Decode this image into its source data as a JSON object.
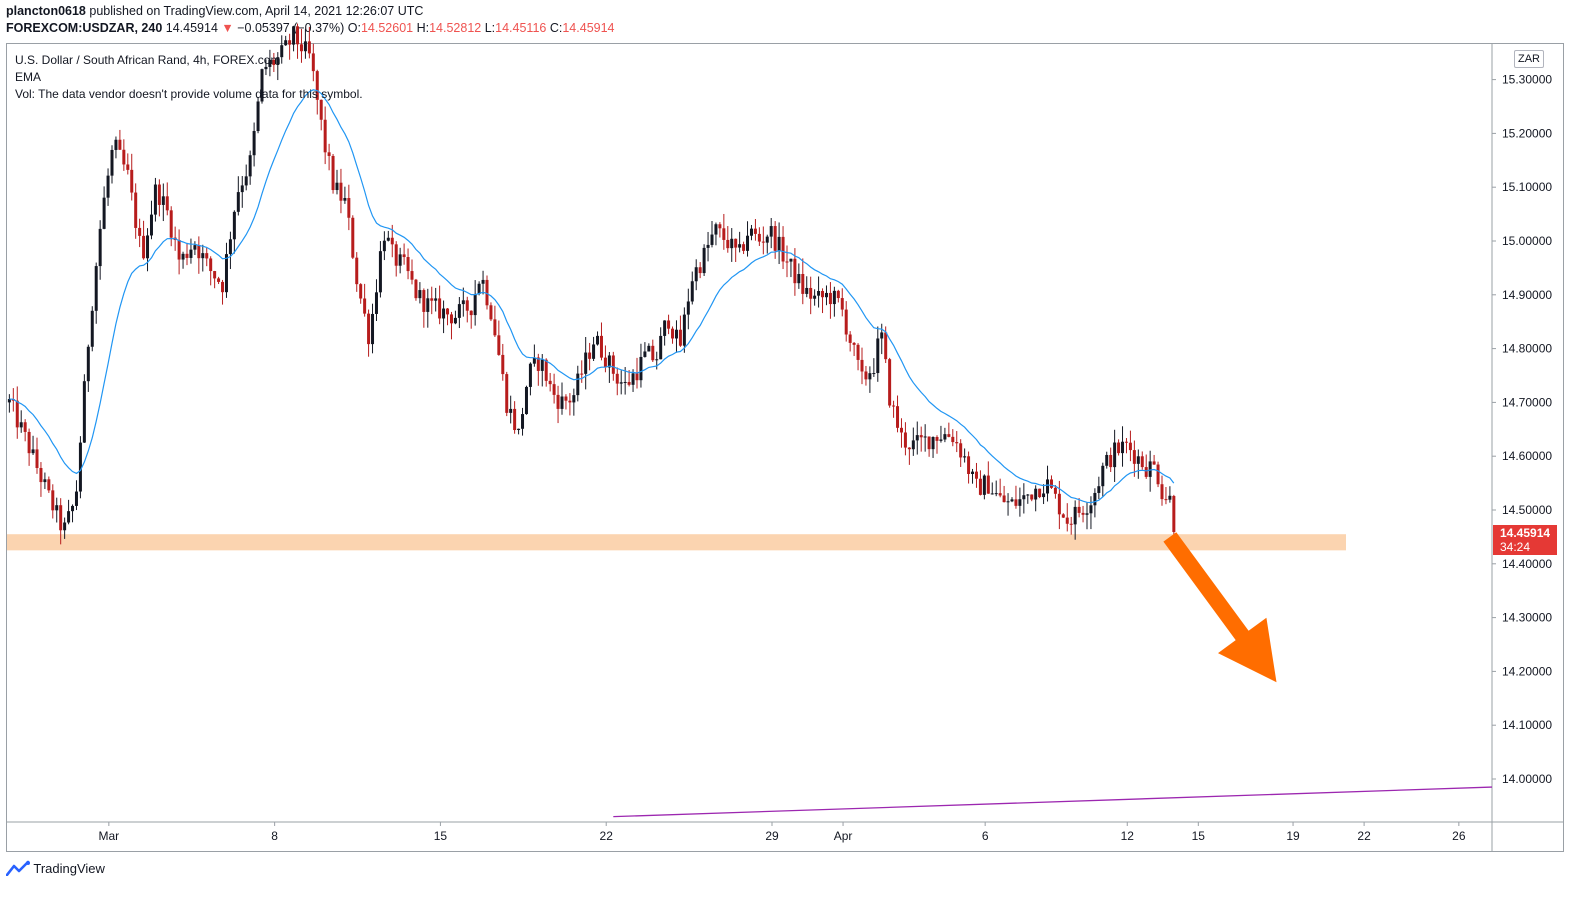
{
  "header": {
    "author": "plancton0618",
    "published_text": "published on TradingView.com, April 14, 2021 12:26:07 UTC",
    "symbol": "FOREXCOM:USDZAR, 240",
    "last": "14.45914",
    "change_arrow": "▼",
    "change": "−0.05397 (−0.37%)",
    "o_label": "O:",
    "o_value": "14.52601",
    "h_label": "H:",
    "h_value": "14.52812",
    "l_label": "L:",
    "l_value": "14.45116",
    "c_label": "C:",
    "c_value": "14.45914"
  },
  "legend": {
    "title": "U.S. Dollar / South African Rand, 4h, FOREX.com",
    "ema": "EMA",
    "vol": "Vol: The data vendor doesn't provide volume data for this symbol."
  },
  "currency_button": "ZAR",
  "price_tag": {
    "price": "14.45914",
    "countdown": "34:24"
  },
  "footer": {
    "brand": "TradingView"
  },
  "colors": {
    "up": "#131722",
    "down": "#b71c1c",
    "ema": "#2196f3",
    "zone": "#fbd4b0",
    "arrow": "#ff6d00",
    "trendline": "#9c27b0",
    "price_tag": "#e53935"
  },
  "chart_data": {
    "type": "candlestick",
    "title": "U.S. Dollar / South African Rand, 4h, FOREX.com",
    "ylim": [
      13.93,
      15.38
    ],
    "y_ticks": [
      "15.30000",
      "15.20000",
      "15.10000",
      "15.00000",
      "14.90000",
      "14.80000",
      "14.70000",
      "14.60000",
      "14.50000",
      "14.40000",
      "14.30000",
      "14.20000",
      "14.10000",
      "14.00000"
    ],
    "y_tick_values": [
      15.3,
      15.2,
      15.1,
      15.0,
      14.9,
      14.8,
      14.7,
      14.6,
      14.5,
      14.4,
      14.3,
      14.2,
      14.1,
      14.0
    ],
    "x_ticks": [
      "Mar",
      "8",
      "15",
      "22",
      "29",
      "Apr",
      "6",
      "12",
      "15",
      "19",
      "22",
      "26"
    ],
    "x_tick_days": [
      1,
      8,
      15,
      22,
      29,
      32,
      38,
      44,
      47,
      51,
      54,
      58
    ],
    "x_day_range": [
      -3.3,
      59.4
    ],
    "candle_day_range": [
      -3.2,
      46.0
    ],
    "support_zone": [
      14.425,
      14.455
    ],
    "ema_label": "EMA",
    "current_price": 14.45914,
    "ohlc_keypoints": [
      [
        -3.2,
        14.7
      ],
      [
        -2.4,
        14.62
      ],
      [
        -1.5,
        14.52
      ],
      [
        -0.9,
        14.46
      ],
      [
        -0.4,
        14.52
      ],
      [
        0.2,
        14.85
      ],
      [
        0.7,
        15.05
      ],
      [
        1.2,
        15.18
      ],
      [
        1.8,
        15.12
      ],
      [
        2.4,
        14.97
      ],
      [
        3.0,
        15.1
      ],
      [
        3.5,
        15.05
      ],
      [
        4.0,
        14.96
      ],
      [
        4.6,
        15.0
      ],
      [
        5.2,
        14.95
      ],
      [
        5.8,
        14.92
      ],
      [
        6.4,
        15.09
      ],
      [
        7.0,
        15.15
      ],
      [
        7.5,
        15.32
      ],
      [
        8.2,
        15.34
      ],
      [
        8.8,
        15.38
      ],
      [
        9.5,
        15.34
      ],
      [
        10.1,
        15.18
      ],
      [
        10.5,
        15.1
      ],
      [
        11.0,
        15.07
      ],
      [
        11.5,
        14.92
      ],
      [
        12.0,
        14.82
      ],
      [
        12.6,
        15.02
      ],
      [
        13.0,
        14.97
      ],
      [
        13.5,
        14.95
      ],
      [
        14.0,
        14.9
      ],
      [
        14.5,
        14.88
      ],
      [
        15.0,
        14.87
      ],
      [
        15.6,
        14.86
      ],
      [
        16.3,
        14.88
      ],
      [
        16.7,
        14.94
      ],
      [
        17.2,
        14.86
      ],
      [
        17.8,
        14.7
      ],
      [
        18.3,
        14.64
      ],
      [
        18.7,
        14.75
      ],
      [
        19.2,
        14.78
      ],
      [
        19.7,
        14.72
      ],
      [
        20.1,
        14.7
      ],
      [
        20.6,
        14.71
      ],
      [
        21.0,
        14.76
      ],
      [
        21.5,
        14.82
      ],
      [
        21.9,
        14.79
      ],
      [
        22.4,
        14.75
      ],
      [
        22.8,
        14.73
      ],
      [
        23.3,
        14.76
      ],
      [
        23.7,
        14.79
      ],
      [
        24.1,
        14.78
      ],
      [
        24.6,
        14.86
      ],
      [
        25.1,
        14.8
      ],
      [
        25.6,
        14.93
      ],
      [
        26.1,
        14.97
      ],
      [
        26.6,
        15.02
      ],
      [
        27.1,
        15.0
      ],
      [
        27.6,
        14.97
      ],
      [
        28.0,
        15.02
      ],
      [
        28.5,
        15.0
      ],
      [
        28.9,
        15.02
      ],
      [
        29.4,
        14.98
      ],
      [
        29.8,
        14.95
      ],
      [
        30.3,
        14.91
      ],
      [
        30.9,
        14.89
      ],
      [
        31.4,
        14.9
      ],
      [
        31.9,
        14.88
      ],
      [
        32.4,
        14.8
      ],
      [
        32.8,
        14.74
      ],
      [
        33.3,
        14.77
      ],
      [
        33.6,
        14.83
      ],
      [
        34.0,
        14.7
      ],
      [
        34.5,
        14.63
      ],
      [
        35.0,
        14.62
      ],
      [
        35.5,
        14.63
      ],
      [
        36.0,
        14.64
      ],
      [
        36.6,
        14.64
      ],
      [
        37.1,
        14.6
      ],
      [
        37.6,
        14.54
      ],
      [
        38.1,
        14.55
      ],
      [
        38.6,
        14.52
      ],
      [
        39.1,
        14.51
      ],
      [
        39.6,
        14.52
      ],
      [
        40.1,
        14.54
      ],
      [
        40.6,
        14.55
      ],
      [
        41.1,
        14.51
      ],
      [
        41.5,
        14.48
      ],
      [
        42.0,
        14.5
      ],
      [
        42.5,
        14.52
      ],
      [
        43.0,
        14.58
      ],
      [
        43.5,
        14.61
      ],
      [
        44.0,
        14.62
      ],
      [
        44.4,
        14.6
      ],
      [
        44.8,
        14.58
      ],
      [
        45.2,
        14.58
      ],
      [
        45.5,
        14.53
      ],
      [
        45.8,
        14.52
      ],
      [
        46.0,
        14.46
      ]
    ]
  }
}
